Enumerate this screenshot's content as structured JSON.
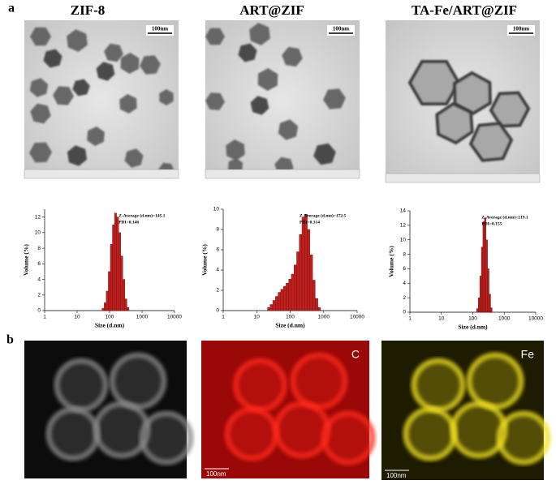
{
  "figure": {
    "panel_a": "a",
    "panel_b": "b",
    "titles": [
      "ZIF-8",
      "ART@ZIF",
      "TA-Fe/ART@ZIF"
    ],
    "tem_scale": [
      "100nm",
      "100nm",
      "100nm"
    ],
    "map_labels": [
      "C",
      "Fe"
    ],
    "map_scale": [
      "100nm",
      "100nm"
    ]
  },
  "chart_data": [
    {
      "type": "histogram",
      "y_label": "Volume (%)",
      "x_label": "Size (d.nm)",
      "annotation": [
        "Z-Average (d.nm)=145.1",
        "PDI=0.146"
      ],
      "bins": [
        58.8,
        68.1,
        78.8,
        91.3,
        105.7,
        122.4,
        141.8,
        164.2,
        190.1,
        220.2,
        255,
        295.3,
        342,
        396
      ],
      "counts": [
        0.3,
        1,
        2.5,
        5,
        8.5,
        11,
        12.5,
        12,
        10,
        7,
        4,
        1.5,
        0.4
      ],
      "color": "#c0201e",
      "log_x": true,
      "xlim": [
        1,
        10000
      ],
      "xticks": [
        1,
        10,
        100,
        1000,
        10000
      ],
      "ylim": [
        0,
        13
      ],
      "yticks": [
        0,
        2,
        4,
        6,
        8,
        10,
        12
      ]
    },
    {
      "type": "histogram",
      "y_label": "Volume (%)",
      "x_label": "Size (d.nm)",
      "annotation": [
        "Z-Average (d.nm)=172.5",
        "PDI=0.314"
      ],
      "bins": [
        21,
        25.2,
        30.2,
        36.3,
        43.5,
        52.2,
        62.7,
        75.2,
        90.3,
        108.3,
        130,
        156,
        187,
        225,
        270,
        324,
        389,
        467,
        560,
        672,
        806
      ],
      "counts": [
        0.3,
        0.6,
        1,
        1.4,
        1.8,
        2.1,
        2.4,
        2.7,
        3.1,
        3.6,
        4.5,
        5.8,
        7.5,
        9.2,
        9.5,
        8,
        5.5,
        3,
        1.2,
        0.3
      ],
      "color": "#c0201e",
      "log_x": true,
      "xlim": [
        1,
        10000
      ],
      "xticks": [
        1,
        10,
        100,
        1000,
        10000
      ],
      "ylim": [
        0,
        10
      ],
      "yticks": [
        0,
        2,
        4,
        6,
        8,
        10
      ]
    },
    {
      "type": "histogram",
      "y_label": "Volume (%)",
      "x_label": "Size (d.nm)",
      "annotation": [
        "Z-Average (d.nm)=219.1",
        "PDI=0.155"
      ],
      "bins": [
        133,
        149,
        167,
        187,
        209,
        234,
        262,
        294,
        329,
        369,
        413
      ],
      "counts": [
        0.5,
        2,
        5,
        9,
        12.5,
        13,
        10,
        6,
        2.5,
        0.6
      ],
      "color": "#c0201e",
      "log_x": true,
      "xlim": [
        1,
        10000
      ],
      "xticks": [
        1,
        10,
        100,
        1000,
        10000
      ],
      "ylim": [
        0,
        14
      ],
      "yticks": [
        0,
        2,
        4,
        6,
        8,
        10,
        12,
        14
      ]
    }
  ]
}
